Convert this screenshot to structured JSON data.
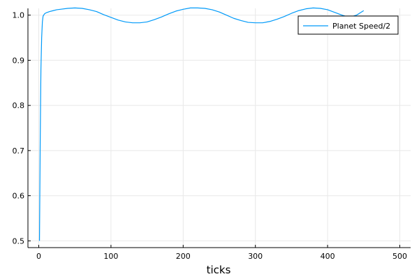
{
  "chart_data": {
    "type": "line",
    "title": "",
    "xlabel": "ticks",
    "ylabel": "",
    "xlim": [
      -15,
      515
    ],
    "ylim": [
      0.485,
      1.015
    ],
    "xticks": [
      0,
      100,
      200,
      300,
      400,
      500
    ],
    "yticks": [
      0.5,
      0.6,
      0.7,
      0.8,
      0.9,
      1.0
    ],
    "xtick_labels": [
      "0",
      "100",
      "200",
      "300",
      "400",
      "500"
    ],
    "ytick_labels": [
      "0.5",
      "0.6",
      "0.7",
      "0.8",
      "0.9",
      "1.0"
    ],
    "grid": true,
    "legend": "top-right",
    "series": [
      {
        "name": "Planet Speed/2",
        "color": "#009af9",
        "x": [
          1,
          2,
          3,
          4,
          5,
          6,
          8,
          10,
          15,
          20,
          25,
          30,
          40,
          50,
          60,
          70,
          80,
          90,
          100,
          110,
          120,
          130,
          140,
          150,
          160,
          170,
          180,
          190,
          200,
          210,
          220,
          230,
          240,
          250,
          260,
          270,
          280,
          290,
          300,
          310,
          320,
          330,
          340,
          350,
          360,
          370,
          380,
          390,
          400,
          410,
          420,
          430,
          440,
          450
        ],
        "y": [
          0.5,
          0.72,
          0.88,
          0.95,
          0.985,
          0.998,
          1.003,
          1.005,
          1.008,
          1.01,
          1.012,
          1.013,
          1.015,
          1.016,
          1.015,
          1.012,
          1.008,
          1.001,
          0.995,
          0.989,
          0.985,
          0.983,
          0.983,
          0.985,
          0.99,
          0.996,
          1.003,
          1.009,
          1.013,
          1.016,
          1.016,
          1.015,
          1.012,
          1.007,
          1.0,
          0.993,
          0.988,
          0.984,
          0.983,
          0.983,
          0.986,
          0.991,
          0.997,
          1.004,
          1.01,
          1.014,
          1.016,
          1.015,
          1.012,
          1.006,
          1.0,
          0.995,
          1.0,
          1.01
        ]
      }
    ]
  }
}
